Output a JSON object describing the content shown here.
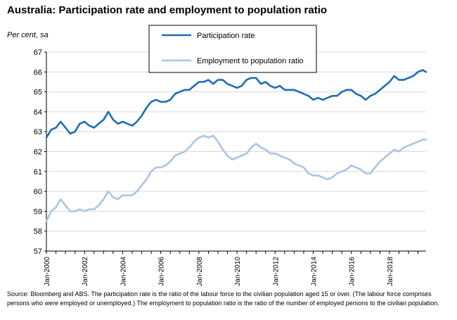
{
  "chart_data": {
    "type": "line",
    "title": "Australia: Participation rate and employment to population ratio",
    "ylabel": "Per cent, sa",
    "xlabel": "",
    "ylim": [
      57,
      67
    ],
    "yticks": [
      57,
      58,
      59,
      60,
      61,
      62,
      63,
      64,
      65,
      66,
      67
    ],
    "xlim": [
      2000.0,
      2019.92
    ],
    "xtick_labels": [
      {
        "year": 2000,
        "label": "Jan-2000"
      },
      {
        "year": 2002,
        "label": "Jan-2002"
      },
      {
        "year": 2004,
        "label": "Jan-2004"
      },
      {
        "year": 2006,
        "label": "Jan-2006"
      },
      {
        "year": 2008,
        "label": "Jan-2008"
      },
      {
        "year": 2010,
        "label": "Jan-2010"
      },
      {
        "year": 2012,
        "label": "Jan-2012"
      },
      {
        "year": 2014,
        "label": "Jan-2014"
      },
      {
        "year": 2016,
        "label": "Jan-2016"
      },
      {
        "year": 2018,
        "label": "Jan-2018"
      }
    ],
    "grid": true,
    "legend_position": "top-center",
    "series": [
      {
        "name": "Participation rate",
        "color": "#1f6cb5",
        "points": [
          [
            2000.0,
            62.7
          ],
          [
            2000.25,
            63.1
          ],
          [
            2000.5,
            63.2
          ],
          [
            2000.75,
            63.5
          ],
          [
            2001.0,
            63.2
          ],
          [
            2001.25,
            62.9
          ],
          [
            2001.5,
            63.0
          ],
          [
            2001.75,
            63.4
          ],
          [
            2002.0,
            63.5
          ],
          [
            2002.25,
            63.3
          ],
          [
            2002.5,
            63.2
          ],
          [
            2002.75,
            63.4
          ],
          [
            2003.0,
            63.6
          ],
          [
            2003.25,
            64.0
          ],
          [
            2003.5,
            63.6
          ],
          [
            2003.75,
            63.4
          ],
          [
            2004.0,
            63.5
          ],
          [
            2004.25,
            63.4
          ],
          [
            2004.5,
            63.3
          ],
          [
            2004.75,
            63.5
          ],
          [
            2005.0,
            63.8
          ],
          [
            2005.25,
            64.2
          ],
          [
            2005.5,
            64.5
          ],
          [
            2005.75,
            64.6
          ],
          [
            2006.0,
            64.5
          ],
          [
            2006.25,
            64.5
          ],
          [
            2006.5,
            64.6
          ],
          [
            2006.75,
            64.9
          ],
          [
            2007.0,
            65.0
          ],
          [
            2007.25,
            65.1
          ],
          [
            2007.5,
            65.1
          ],
          [
            2007.75,
            65.3
          ],
          [
            2008.0,
            65.5
          ],
          [
            2008.25,
            65.5
          ],
          [
            2008.5,
            65.6
          ],
          [
            2008.75,
            65.4
          ],
          [
            2009.0,
            65.6
          ],
          [
            2009.25,
            65.6
          ],
          [
            2009.5,
            65.4
          ],
          [
            2009.75,
            65.3
          ],
          [
            2010.0,
            65.2
          ],
          [
            2010.25,
            65.3
          ],
          [
            2010.5,
            65.6
          ],
          [
            2010.75,
            65.7
          ],
          [
            2011.0,
            65.7
          ],
          [
            2011.25,
            65.4
          ],
          [
            2011.5,
            65.5
          ],
          [
            2011.75,
            65.3
          ],
          [
            2012.0,
            65.2
          ],
          [
            2012.25,
            65.3
          ],
          [
            2012.5,
            65.1
          ],
          [
            2012.75,
            65.1
          ],
          [
            2013.0,
            65.1
          ],
          [
            2013.25,
            65.0
          ],
          [
            2013.5,
            64.9
          ],
          [
            2013.75,
            64.8
          ],
          [
            2014.0,
            64.6
          ],
          [
            2014.25,
            64.7
          ],
          [
            2014.5,
            64.6
          ],
          [
            2014.75,
            64.7
          ],
          [
            2015.0,
            64.8
          ],
          [
            2015.25,
            64.8
          ],
          [
            2015.5,
            65.0
          ],
          [
            2015.75,
            65.1
          ],
          [
            2016.0,
            65.1
          ],
          [
            2016.25,
            64.9
          ],
          [
            2016.5,
            64.8
          ],
          [
            2016.75,
            64.6
          ],
          [
            2017.0,
            64.8
          ],
          [
            2017.25,
            64.9
          ],
          [
            2017.5,
            65.1
          ],
          [
            2017.75,
            65.3
          ],
          [
            2018.0,
            65.5
          ],
          [
            2018.25,
            65.8
          ],
          [
            2018.5,
            65.6
          ],
          [
            2018.75,
            65.6
          ],
          [
            2019.0,
            65.7
          ],
          [
            2019.25,
            65.8
          ],
          [
            2019.5,
            66.0
          ],
          [
            2019.75,
            66.1
          ],
          [
            2019.92,
            66.0
          ]
        ]
      },
      {
        "name": "Employment to population ratio",
        "color": "#a9c5e3",
        "points": [
          [
            2000.0,
            58.5
          ],
          [
            2000.25,
            59.0
          ],
          [
            2000.5,
            59.2
          ],
          [
            2000.75,
            59.6
          ],
          [
            2001.0,
            59.3
          ],
          [
            2001.25,
            59.0
          ],
          [
            2001.5,
            59.0
          ],
          [
            2001.75,
            59.1
          ],
          [
            2002.0,
            59.0
          ],
          [
            2002.25,
            59.1
          ],
          [
            2002.5,
            59.1
          ],
          [
            2002.75,
            59.3
          ],
          [
            2003.0,
            59.6
          ],
          [
            2003.25,
            60.0
          ],
          [
            2003.5,
            59.7
          ],
          [
            2003.75,
            59.6
          ],
          [
            2004.0,
            59.8
          ],
          [
            2004.25,
            59.8
          ],
          [
            2004.5,
            59.8
          ],
          [
            2004.75,
            60.0
          ],
          [
            2005.0,
            60.3
          ],
          [
            2005.25,
            60.6
          ],
          [
            2005.5,
            61.0
          ],
          [
            2005.75,
            61.2
          ],
          [
            2006.0,
            61.2
          ],
          [
            2006.25,
            61.3
          ],
          [
            2006.5,
            61.5
          ],
          [
            2006.75,
            61.8
          ],
          [
            2007.0,
            61.9
          ],
          [
            2007.25,
            62.0
          ],
          [
            2007.5,
            62.2
          ],
          [
            2007.75,
            62.5
          ],
          [
            2008.0,
            62.7
          ],
          [
            2008.25,
            62.8
          ],
          [
            2008.5,
            62.7
          ],
          [
            2008.75,
            62.8
          ],
          [
            2009.0,
            62.5
          ],
          [
            2009.25,
            62.1
          ],
          [
            2009.5,
            61.8
          ],
          [
            2009.75,
            61.6
          ],
          [
            2010.0,
            61.7
          ],
          [
            2010.25,
            61.8
          ],
          [
            2010.5,
            61.9
          ],
          [
            2010.75,
            62.2
          ],
          [
            2011.0,
            62.4
          ],
          [
            2011.25,
            62.2
          ],
          [
            2011.5,
            62.1
          ],
          [
            2011.75,
            61.9
          ],
          [
            2012.0,
            61.9
          ],
          [
            2012.25,
            61.8
          ],
          [
            2012.5,
            61.7
          ],
          [
            2012.75,
            61.6
          ],
          [
            2013.0,
            61.4
          ],
          [
            2013.25,
            61.3
          ],
          [
            2013.5,
            61.2
          ],
          [
            2013.75,
            60.9
          ],
          [
            2014.0,
            60.8
          ],
          [
            2014.25,
            60.8
          ],
          [
            2014.5,
            60.7
          ],
          [
            2014.75,
            60.6
          ],
          [
            2015.0,
            60.7
          ],
          [
            2015.25,
            60.9
          ],
          [
            2015.5,
            61.0
          ],
          [
            2015.75,
            61.1
          ],
          [
            2016.0,
            61.3
          ],
          [
            2016.25,
            61.2
          ],
          [
            2016.5,
            61.1
          ],
          [
            2016.75,
            60.9
          ],
          [
            2017.0,
            60.9
          ],
          [
            2017.25,
            61.2
          ],
          [
            2017.5,
            61.5
          ],
          [
            2017.75,
            61.7
          ],
          [
            2018.0,
            61.9
          ],
          [
            2018.25,
            62.1
          ],
          [
            2018.5,
            62.0
          ],
          [
            2018.75,
            62.2
          ],
          [
            2019.0,
            62.3
          ],
          [
            2019.25,
            62.4
          ],
          [
            2019.5,
            62.5
          ],
          [
            2019.75,
            62.6
          ],
          [
            2019.92,
            62.6
          ]
        ]
      }
    ],
    "source_note": "Source: Bloomberg and ABS.  The participation rate is the ratio of the labour force to the civilian population aged 15 or over.  (The labour force comprises persons who were employed or unemployed.) The employment to population ratio is the ratio of the number of employed persons to the civilian population."
  }
}
